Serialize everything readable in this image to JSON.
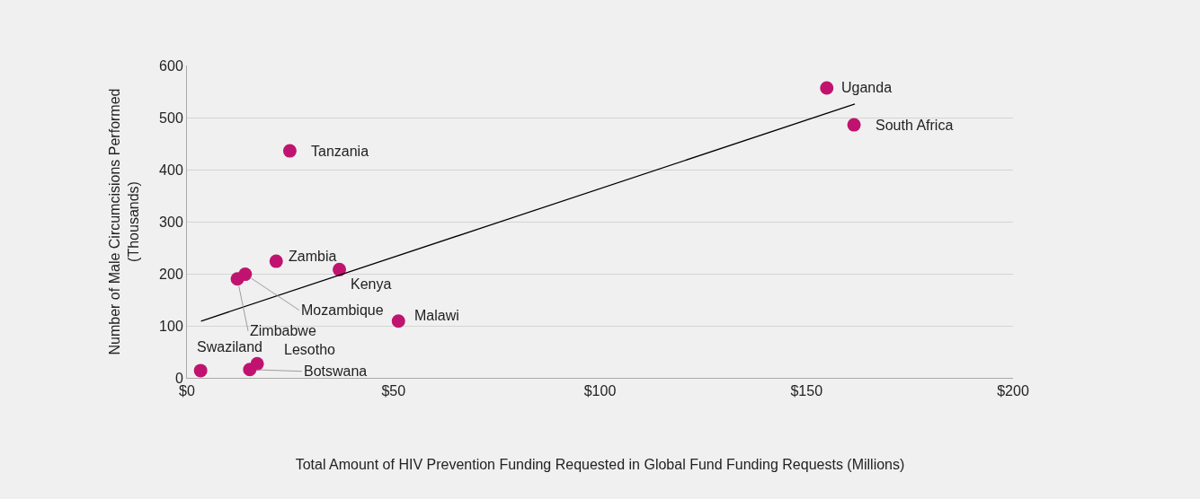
{
  "chart_data": {
    "type": "scatter",
    "xlabel": "Total Amount of HIV Prevention Funding Requested in Global Fund Funding Requests (Millions)",
    "ylabel": "Number of Male Circumcisions Performed\n(Thousands)",
    "xlim": [
      0,
      200
    ],
    "xticks": [
      {
        "value": 0,
        "label": "$0"
      },
      {
        "value": 50,
        "label": "$50"
      },
      {
        "value": 100,
        "label": "$100"
      },
      {
        "value": 150,
        "label": "$150"
      },
      {
        "value": 200,
        "label": "$200"
      }
    ],
    "ylim": [
      0,
      600
    ],
    "yticks": [
      0,
      100,
      200,
      300,
      400,
      500,
      600
    ],
    "grid": "y",
    "series": [
      {
        "marker": "circle",
        "color": "#c0136f",
        "x": [
          154.9,
          161.5,
          24.9,
          21.6,
          36.9,
          14.1,
          12.2,
          51.2,
          17.0,
          15.2,
          3.3
        ],
        "values": [
          557,
          486,
          436,
          224,
          208,
          199,
          190,
          109,
          27,
          16,
          14
        ]
      },
      {
        "type": "line",
        "color": "#000000",
        "x": [
          3.4,
          161.7
        ],
        "values": [
          109,
          526
        ]
      }
    ],
    "annotations": [
      {
        "text": "Uganda",
        "x": 154.9,
        "y": 557
      },
      {
        "text": "South Africa",
        "x": 161.5,
        "y": 486
      },
      {
        "text": "Tanzania",
        "x": 24.9,
        "y": 436
      },
      {
        "text": "Zambia",
        "x": 21.6,
        "y": 224
      },
      {
        "text": "Kenya",
        "x": 36.9,
        "y": 208
      },
      {
        "text": "Mozambique",
        "x": 14.1,
        "y": 199
      },
      {
        "text": "Zimbabwe",
        "x": 12.2,
        "y": 190
      },
      {
        "text": "Malawi",
        "x": 51.2,
        "y": 109
      },
      {
        "text": "Lesotho",
        "x": 17.0,
        "y": 27
      },
      {
        "text": "Botswana",
        "x": 15.2,
        "y": 16
      },
      {
        "text": "Swaziland",
        "x": 3.3,
        "y": 14
      }
    ]
  }
}
